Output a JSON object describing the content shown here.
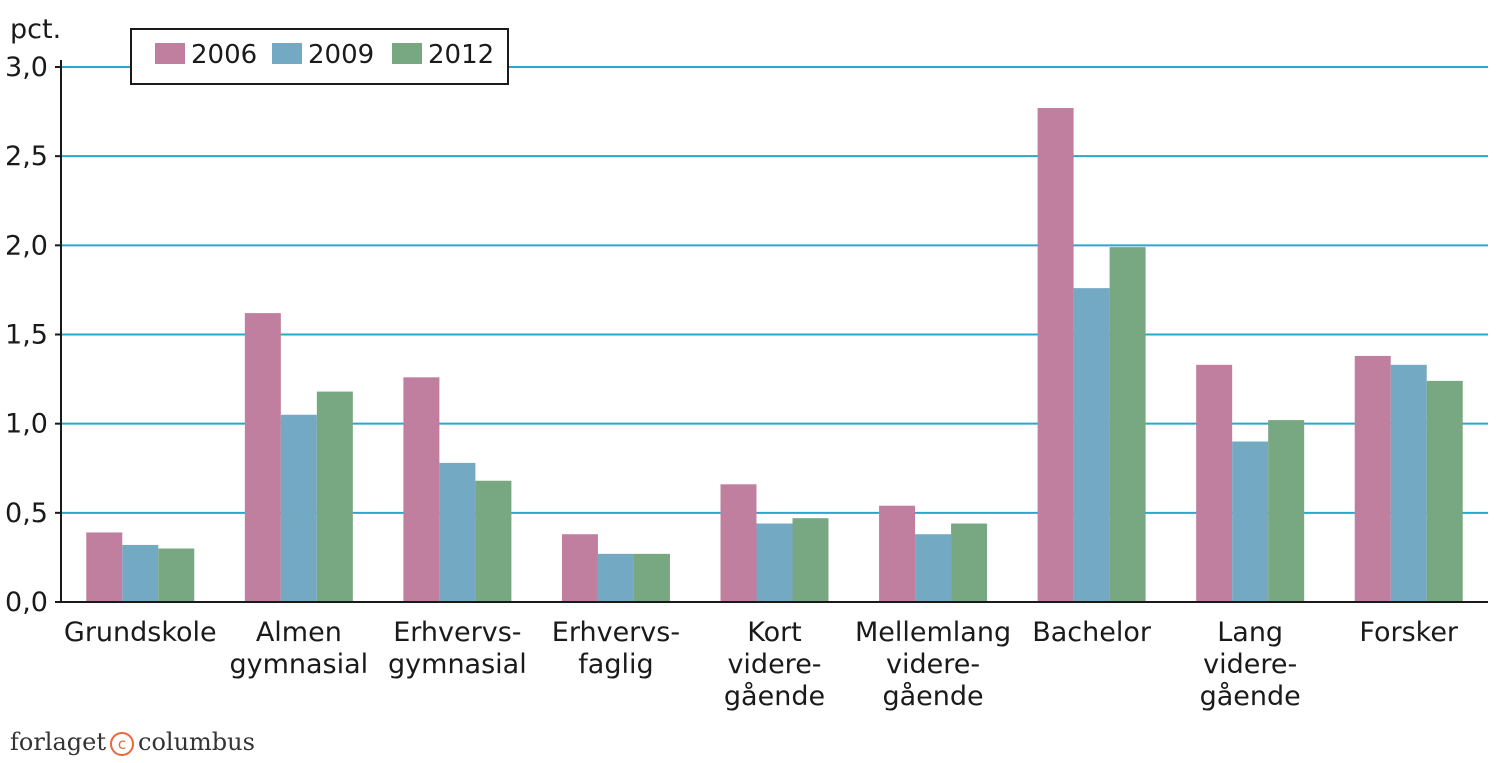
{
  "chart_data": {
    "type": "bar",
    "ylabel": "pct.",
    "ylim": [
      0,
      3.0
    ],
    "yticks": [
      "0,0",
      "0,5",
      "1,0",
      "1,5",
      "2,0",
      "2,5",
      "3,0"
    ],
    "grid": true,
    "legend_position": "top-left",
    "categories": [
      [
        "Grundskole"
      ],
      [
        "Almen",
        "gymnasial"
      ],
      [
        "Erhvervs-",
        "gymnasial"
      ],
      [
        "Erhvervs-",
        "faglig"
      ],
      [
        "Kort",
        "videre-",
        "gående"
      ],
      [
        "Mellemlang",
        "videre-",
        "gående"
      ],
      [
        "Bachelor"
      ],
      [
        "Lang",
        "videre-",
        "gående"
      ],
      [
        "Forsker"
      ]
    ],
    "series": [
      {
        "name": "2006",
        "color": "#c07f9e",
        "values": [
          0.39,
          1.62,
          1.26,
          0.38,
          0.66,
          0.54,
          2.77,
          1.33,
          1.38
        ]
      },
      {
        "name": "2009",
        "color": "#74a9c3",
        "values": [
          0.32,
          1.05,
          0.78,
          0.27,
          0.44,
          0.38,
          1.76,
          0.9,
          1.33
        ]
      },
      {
        "name": "2012",
        "color": "#78a881",
        "values": [
          0.3,
          1.18,
          0.68,
          0.27,
          0.47,
          0.44,
          1.99,
          1.02,
          1.24
        ]
      }
    ]
  },
  "footer": {
    "left": "forlaget",
    "mark": "c",
    "right": "columbus"
  }
}
